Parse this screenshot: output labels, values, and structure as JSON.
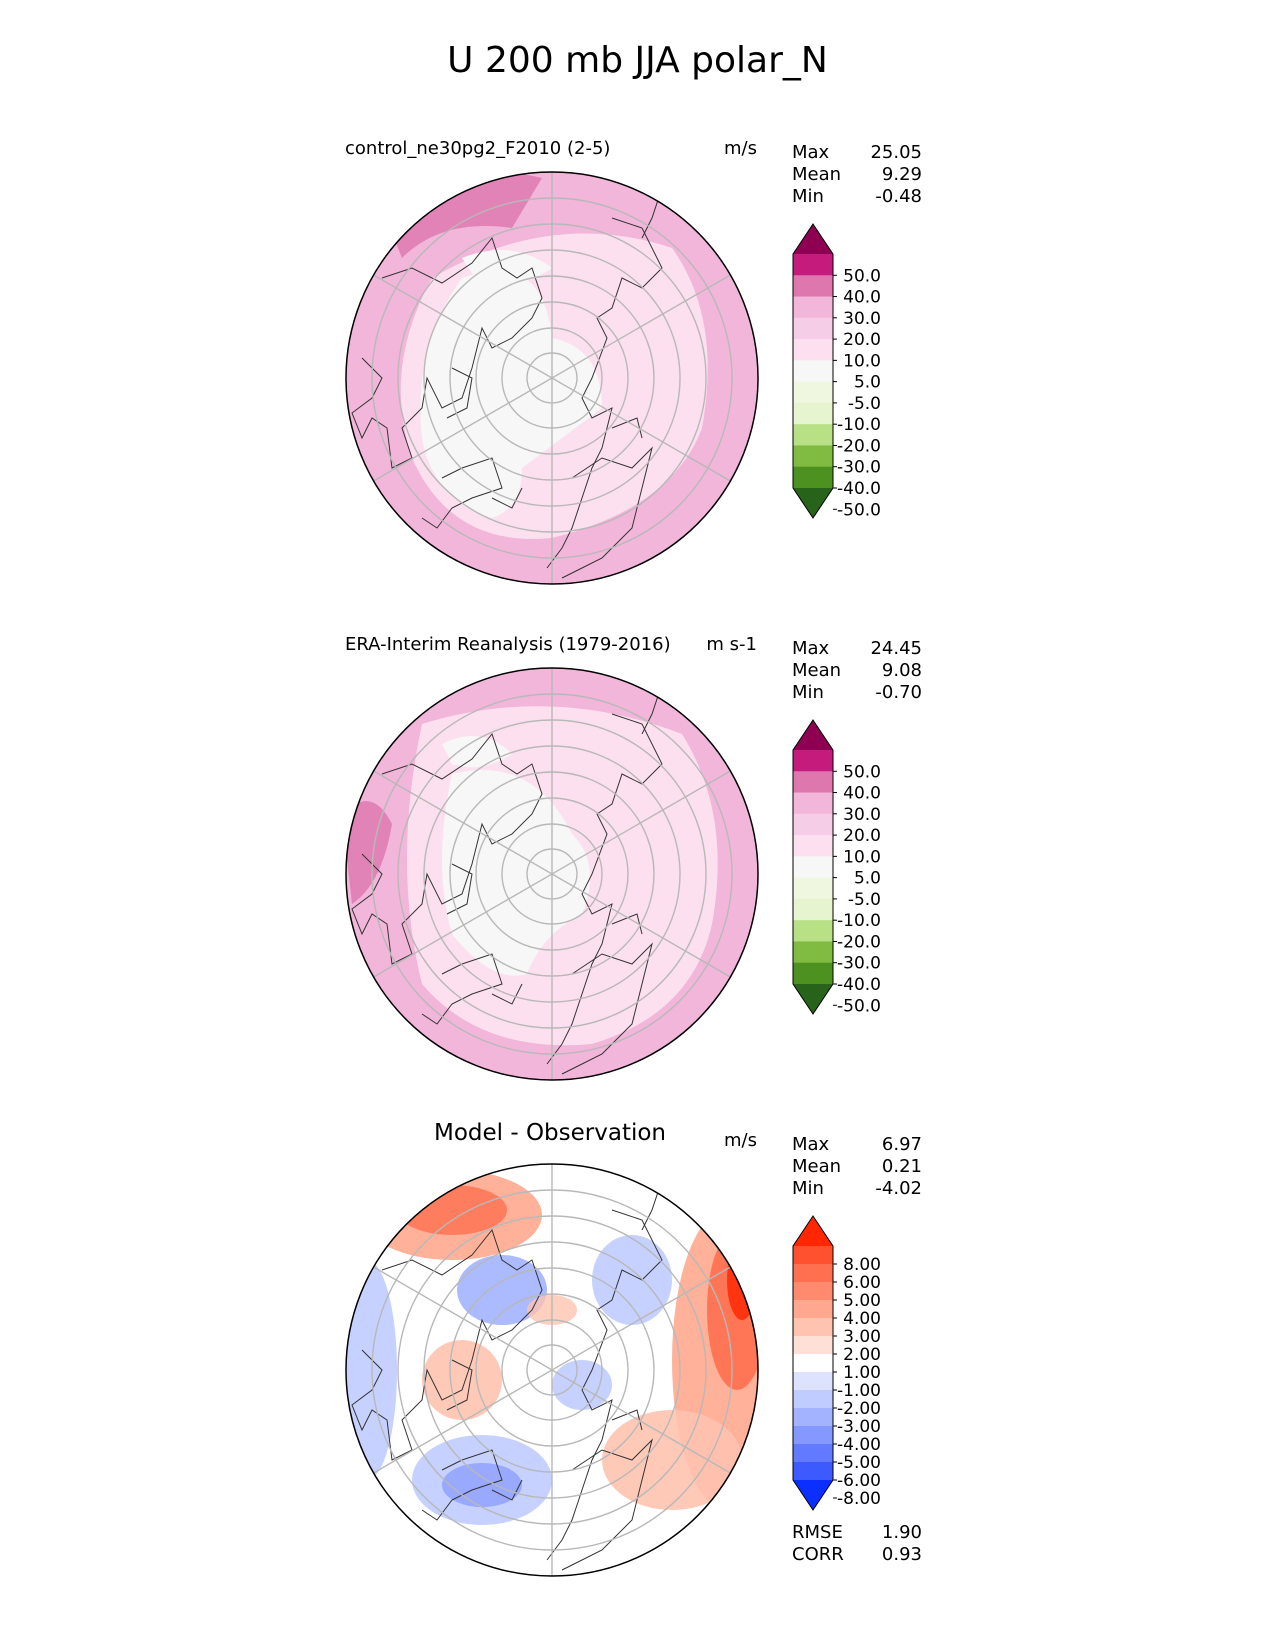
{
  "title": "U 200 mb JJA polar_N",
  "panels": [
    {
      "id": "test",
      "title_left": "control_ne30pg2_F2010 (2-5)",
      "title_center": "",
      "units": "m/s",
      "stats": [
        {
          "label": "Max",
          "value": "25.05"
        },
        {
          "label": "Mean",
          "value": "9.29"
        },
        {
          "label": "Min",
          "value": "-0.48"
        }
      ],
      "colorbar": {
        "levels": [
          "50.0",
          "40.0",
          "30.0",
          "20.0",
          "10.0",
          "5.0",
          "-5.0",
          "-10.0",
          "-20.0",
          "-30.0",
          "-40.0",
          "-50.0"
        ],
        "colors": [
          "#8e0152",
          "#c51b7d",
          "#de77ae",
          "#f1b6da",
          "#f6cde6",
          "#fde0ef",
          "#f7f7f7",
          "#f0f7e0",
          "#e6f5d0",
          "#b8e186",
          "#7fbc41",
          "#4d9221",
          "#276419"
        ]
      }
    },
    {
      "id": "ref",
      "title_left": "ERA-Interim Reanalysis (1979-2016)",
      "title_center": "",
      "units": "m s-1",
      "stats": [
        {
          "label": "Max",
          "value": "24.45"
        },
        {
          "label": "Mean",
          "value": "9.08"
        },
        {
          "label": "Min",
          "value": "-0.70"
        }
      ],
      "colorbar": {
        "levels": [
          "50.0",
          "40.0",
          "30.0",
          "20.0",
          "10.0",
          "5.0",
          "-5.0",
          "-10.0",
          "-20.0",
          "-30.0",
          "-40.0",
          "-50.0"
        ],
        "colors": [
          "#8e0152",
          "#c51b7d",
          "#de77ae",
          "#f1b6da",
          "#f6cde6",
          "#fde0ef",
          "#f7f7f7",
          "#f0f7e0",
          "#e6f5d0",
          "#b8e186",
          "#7fbc41",
          "#4d9221",
          "#276419"
        ]
      }
    },
    {
      "id": "diff",
      "title_left": "",
      "title_center": "Model - Observation",
      "units": "m/s",
      "stats": [
        {
          "label": "Max",
          "value": "6.97"
        },
        {
          "label": "Mean",
          "value": "0.21"
        },
        {
          "label": "Min",
          "value": "-4.02"
        }
      ],
      "footer_stats": [
        {
          "label": "RMSE",
          "value": "1.90"
        },
        {
          "label": "CORR",
          "value": "0.93"
        }
      ],
      "colorbar": {
        "levels": [
          "8.00",
          "6.00",
          "5.00",
          "4.00",
          "3.00",
          "2.00",
          "1.00",
          "-1.00",
          "-2.00",
          "-3.00",
          "-4.00",
          "-5.00",
          "-6.00",
          "-8.00"
        ],
        "colors": [
          "#ff2600",
          "#ff5030",
          "#ff7050",
          "#ff8a6e",
          "#ffa88f",
          "#ffc3b0",
          "#ffe0d6",
          "#ffffff",
          "#dde3ff",
          "#c0ccff",
          "#a3b3ff",
          "#8598ff",
          "#627aff",
          "#3d5aff",
          "#0a2fff"
        ]
      }
    }
  ]
}
